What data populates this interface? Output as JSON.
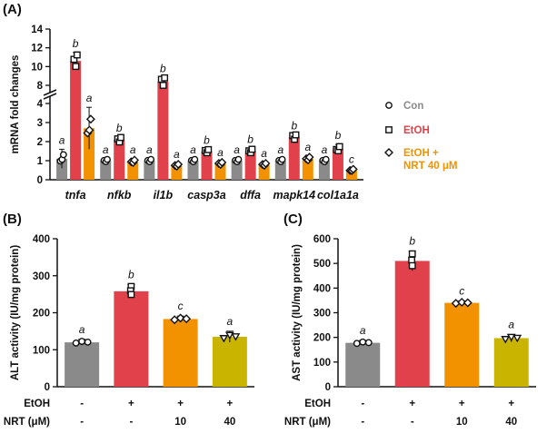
{
  "colors": {
    "con": "#8a8a8a",
    "etoh": "#e0414a",
    "nrt": "#f39200",
    "nrt40": "#c9b500",
    "axis": "#111111"
  },
  "chart_data": [
    {
      "panel": "(A)",
      "type": "bar",
      "ylabel": "mRNA fold changes",
      "broken_axis": {
        "lower": [
          0,
          4
        ],
        "upper": [
          8,
          14
        ]
      },
      "yticks_lower": [
        "0",
        "1",
        "2",
        "3",
        "4"
      ],
      "yticks_upper": [
        "8",
        "10",
        "12",
        "14"
      ],
      "categories": [
        "tnfa",
        "nfkb",
        "il1b",
        "casp3a",
        "dffa",
        "mapk14",
        "col1a1a"
      ],
      "legend": [
        "Con",
        "EtOH",
        "EtOH +",
        "NRT 40 μM"
      ],
      "series": [
        {
          "name": "Con",
          "values": [
            1.1,
            1.0,
            1.0,
            1.0,
            1.0,
            1.0,
            1.0
          ],
          "err": [
            0.5,
            0.1,
            0.1,
            0.1,
            0.1,
            0.1,
            0.1
          ],
          "labels": [
            "a",
            "a",
            "a",
            "a",
            "a",
            "a",
            "a"
          ]
        },
        {
          "name": "EtOH",
          "values": [
            10.6,
            2.1,
            8.4,
            1.5,
            1.5,
            2.25,
            1.6
          ],
          "err": [
            0.9,
            0.15,
            0.4,
            0.1,
            0.15,
            0.1,
            0.25
          ],
          "labels": [
            "b",
            "b",
            "b",
            "b",
            "b",
            "b",
            "b"
          ]
        },
        {
          "name": "EtOH + NRT 40 μM",
          "values": [
            2.7,
            0.95,
            0.75,
            0.85,
            0.8,
            1.1,
            0.5
          ],
          "err": [
            1.1,
            0.15,
            0.1,
            0.1,
            0.1,
            0.15,
            0.1
          ],
          "labels": [
            "a",
            "a",
            "a",
            "a",
            "a",
            "a",
            "c"
          ]
        }
      ]
    },
    {
      "panel": "(B)",
      "type": "bar",
      "ylabel": "ALT activity (IU/mg protein)",
      "ylim": [
        0,
        400
      ],
      "yticks": [
        "0",
        "100",
        "200",
        "300",
        "400"
      ],
      "values": [
        120,
        258,
        183,
        135
      ],
      "err": [
        8,
        18,
        8,
        15
      ],
      "labels": [
        "a",
        "b",
        "c",
        "a"
      ],
      "etoh_row": {
        "label": "EtOH",
        "cells": [
          "-",
          "+",
          "+",
          "+"
        ]
      },
      "nrt_row": {
        "label": "NRT (μM)",
        "cells": [
          "-",
          "-",
          "10",
          "40"
        ]
      }
    },
    {
      "panel": "(C)",
      "type": "bar",
      "ylabel": "AST activity (IU/mg protein)",
      "ylim": [
        0,
        600
      ],
      "yticks": [
        "0",
        "100",
        "200",
        "300",
        "400",
        "500",
        "600"
      ],
      "values": [
        178,
        510,
        340,
        197
      ],
      "err": [
        10,
        40,
        8,
        15
      ],
      "labels": [
        "a",
        "b",
        "c",
        "a"
      ],
      "etoh_row": {
        "label": "EtOH",
        "cells": [
          "-",
          "+",
          "+",
          "+"
        ]
      },
      "nrt_row": {
        "label": "NRT (μM)",
        "cells": [
          "-",
          "-",
          "10",
          "40"
        ]
      }
    }
  ]
}
